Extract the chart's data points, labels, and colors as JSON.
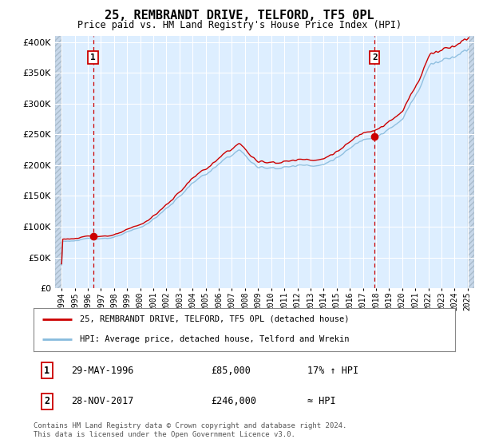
{
  "title": "25, REMBRANDT DRIVE, TELFORD, TF5 0PL",
  "subtitle": "Price paid vs. HM Land Registry's House Price Index (HPI)",
  "legend_line1": "25, REMBRANDT DRIVE, TELFORD, TF5 0PL (detached house)",
  "legend_line2": "HPI: Average price, detached house, Telford and Wrekin",
  "annotation1_date": "29-MAY-1996",
  "annotation1_price": "£85,000",
  "annotation1_hpi": "17% ↑ HPI",
  "annotation2_date": "28-NOV-2017",
  "annotation2_price": "£246,000",
  "annotation2_hpi": "≈ HPI",
  "footnote": "Contains HM Land Registry data © Crown copyright and database right 2024.\nThis data is licensed under the Open Government Licence v3.0.",
  "sale1_year": 1996.4,
  "sale1_price": 85000,
  "sale2_year": 2017.9,
  "sale2_price": 246000,
  "hpi_line_color": "#88bbdd",
  "red_line_color": "#cc0000",
  "sale_dot_color": "#cc0000",
  "dashed_line_color": "#cc0000",
  "plot_bg_color": "#ddeeff",
  "grid_color": "#ffffff",
  "ylim": [
    0,
    410000
  ],
  "yticks": [
    0,
    50000,
    100000,
    150000,
    200000,
    250000,
    300000,
    350000,
    400000
  ],
  "xlim_start": 1993.5,
  "xlim_end": 2025.5,
  "xticks": [
    1994,
    1995,
    1996,
    1997,
    1998,
    1999,
    2000,
    2001,
    2002,
    2003,
    2004,
    2005,
    2006,
    2007,
    2008,
    2009,
    2010,
    2011,
    2012,
    2013,
    2014,
    2015,
    2016,
    2017,
    2018,
    2019,
    2020,
    2021,
    2022,
    2023,
    2024,
    2025
  ]
}
